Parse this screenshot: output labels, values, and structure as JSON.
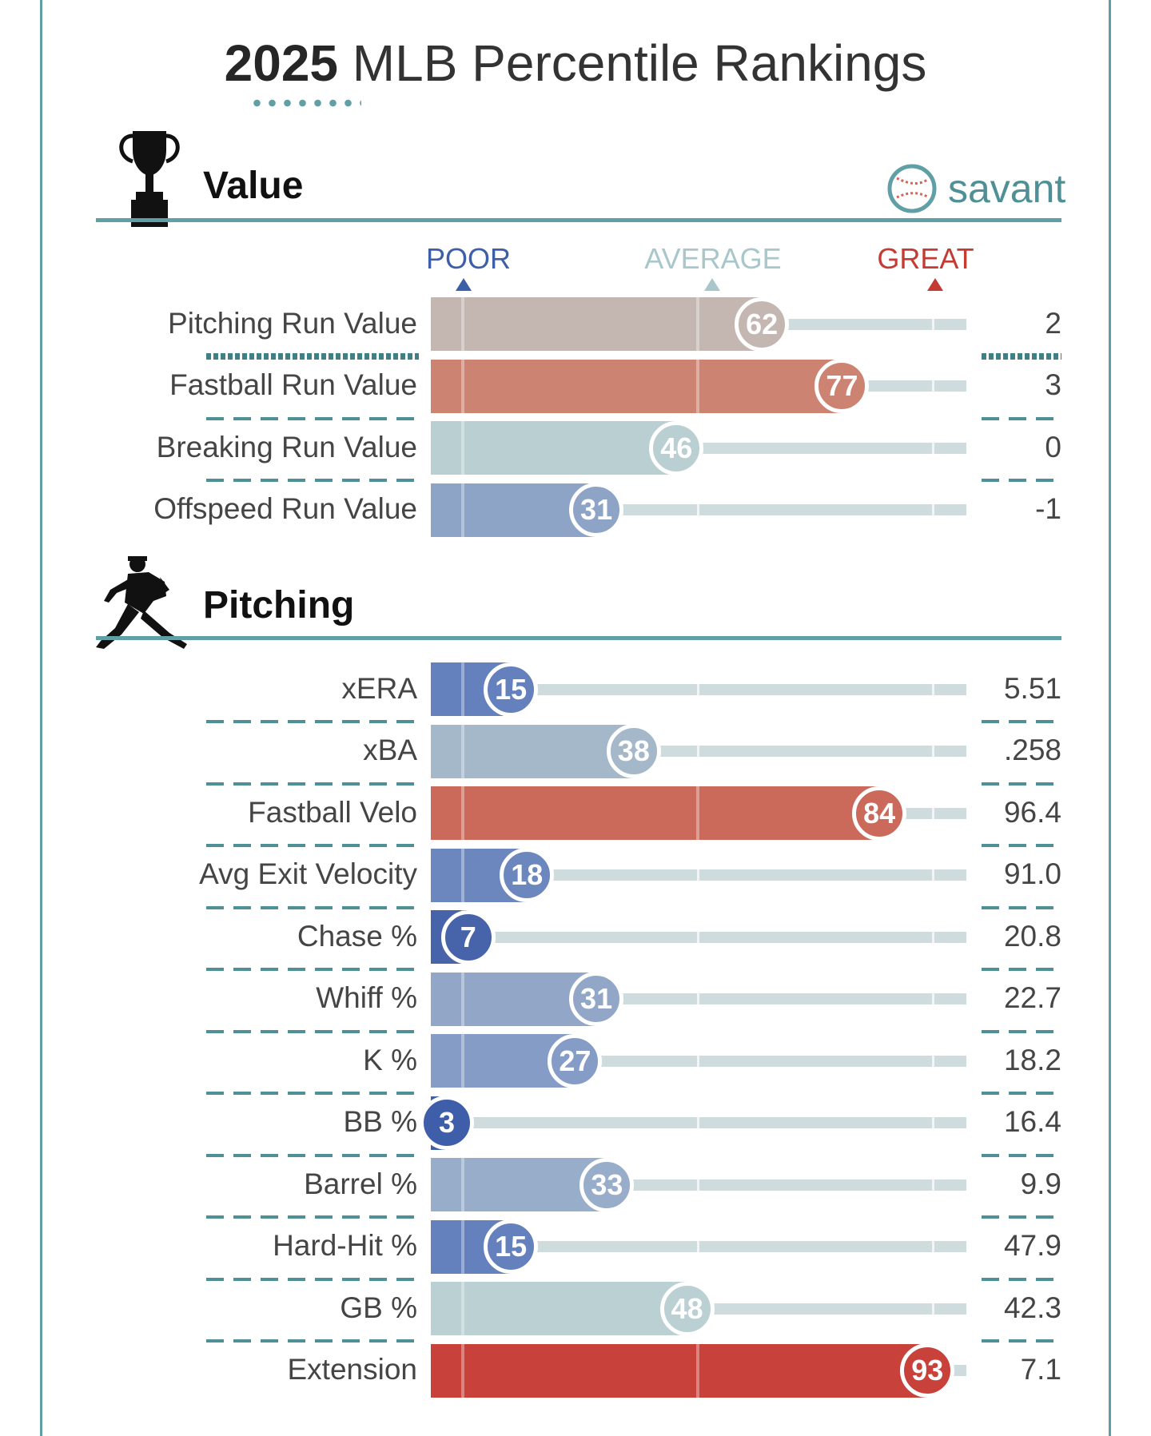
{
  "header": {
    "title_year": "2025",
    "title_rest": "MLB Percentile Rankings"
  },
  "brand": {
    "logo_icon": "baseball-icon",
    "label": "savant"
  },
  "scale": {
    "poor": "POOR",
    "average": "AVERAGE",
    "great": "GREAT",
    "poor_color": "#3d5ea8",
    "average_color": "#a9c7ca",
    "great_color": "#c43b33"
  },
  "sections": [
    {
      "title": "Value",
      "icon": "trophy-icon"
    },
    {
      "title": "Pitching",
      "icon": "pitcher-icon"
    }
  ],
  "chart_data": {
    "type": "bar",
    "title": "2025 MLB Percentile Rankings",
    "xlim": [
      0,
      100
    ],
    "series_name": "Percentile",
    "groups": [
      {
        "name": "Value",
        "rows": [
          {
            "label": "Pitching Run Value",
            "percentile": 62,
            "value": "2",
            "color": "#c4b7b2"
          },
          {
            "label": "Fastball Run Value",
            "percentile": 77,
            "value": "3",
            "color": "#cd8372"
          },
          {
            "label": "Breaking Run Value",
            "percentile": 46,
            "value": "0",
            "color": "#b9cfd2"
          },
          {
            "label": "Offspeed Run Value",
            "percentile": 31,
            "value": "-1",
            "color": "#8da4c7"
          }
        ]
      },
      {
        "name": "Pitching",
        "rows": [
          {
            "label": "xERA",
            "percentile": 15,
            "value": "5.51",
            "color": "#6480bd"
          },
          {
            "label": "xBA",
            "percentile": 38,
            "value": ".258",
            "color": "#a4b8c9"
          },
          {
            "label": "Fastball Velo",
            "percentile": 84,
            "value": "96.4",
            "color": "#cb6a5a"
          },
          {
            "label": "Avg Exit Velocity",
            "percentile": 18,
            "value": "91.0",
            "color": "#6c87bd"
          },
          {
            "label": "Chase %",
            "percentile": 7,
            "value": "20.8",
            "color": "#4764ab"
          },
          {
            "label": "Whiff %",
            "percentile": 31,
            "value": "22.7",
            "color": "#92a7c8"
          },
          {
            "label": "K %",
            "percentile": 27,
            "value": "18.2",
            "color": "#859dc6"
          },
          {
            "label": "BB %",
            "percentile": 3,
            "value": "16.4",
            "color": "#3e5ea9"
          },
          {
            "label": "Barrel %",
            "percentile": 33,
            "value": "9.9",
            "color": "#97adc9"
          },
          {
            "label": "Hard-Hit %",
            "percentile": 15,
            "value": "47.9",
            "color": "#6480bd"
          },
          {
            "label": "GB %",
            "percentile": 48,
            "value": "42.3",
            "color": "#bbd0d3"
          },
          {
            "label": "Extension",
            "percentile": 93,
            "value": "7.1",
            "color": "#c8413a"
          }
        ]
      }
    ]
  }
}
